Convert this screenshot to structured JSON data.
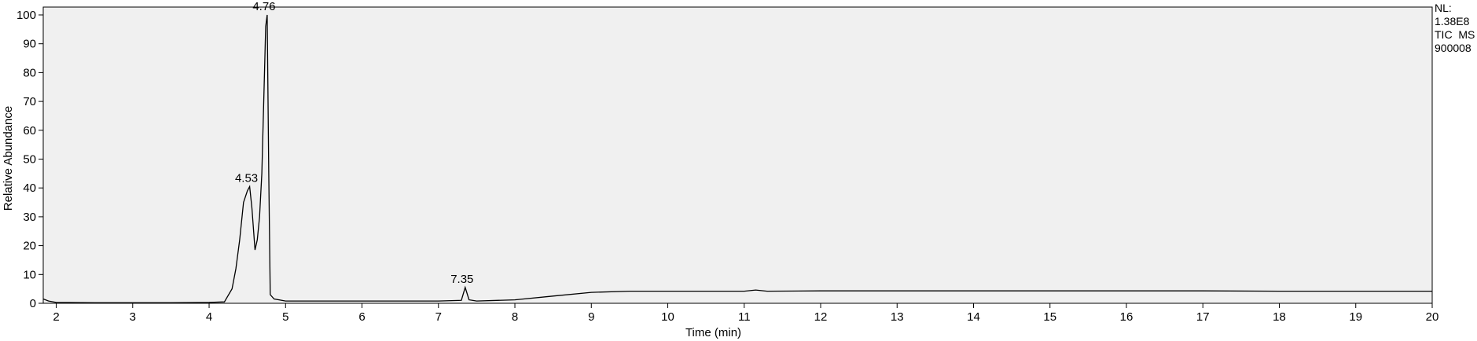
{
  "colors": {
    "plot_background": "#f0f0f0",
    "trace": "#000000",
    "axis": "#000000"
  },
  "info": {
    "normalization_label": "NL:",
    "normalization_value": "1.38E8",
    "scan_filter": "TIC  MS",
    "sample_id": "900008"
  },
  "chart_data": {
    "type": "line",
    "title": "",
    "xlabel": "Time (min)",
    "ylabel": "Relative Abundance",
    "xlim": [
      1.83,
      20
    ],
    "ylim": [
      0,
      100
    ],
    "x_ticks": [
      2,
      3,
      4,
      5,
      6,
      7,
      8,
      9,
      10,
      11,
      12,
      13,
      14,
      15,
      16,
      17,
      18,
      19,
      20
    ],
    "y_ticks": [
      0,
      10,
      20,
      30,
      40,
      50,
      60,
      70,
      80,
      90,
      100
    ],
    "grid": false,
    "legend": "none",
    "series": [
      {
        "x": [
          1.83,
          1.9,
          2.0,
          2.5,
          3.0,
          3.5,
          4.0,
          4.2,
          4.3,
          4.35,
          4.4,
          4.45,
          4.5,
          4.53,
          4.56,
          4.6,
          4.63,
          4.66,
          4.69,
          4.72,
          4.74,
          4.76,
          4.78,
          4.8,
          4.85,
          5.0,
          5.5,
          6.0,
          6.5,
          7.0,
          7.3,
          7.35,
          7.4,
          7.5,
          8.0,
          8.5,
          9.0,
          9.5,
          10.0,
          11.0,
          11.15,
          11.3,
          12.0,
          13.0,
          14.0,
          15.0,
          16.0,
          17.0,
          18.0,
          19.0,
          20.0
        ],
        "y": [
          1.5,
          0.8,
          0.3,
          0.2,
          0.2,
          0.2,
          0.3,
          0.5,
          5.0,
          12.0,
          22.0,
          35.0,
          39.0,
          40.5,
          33.0,
          18.5,
          22.0,
          30.0,
          45.0,
          75.0,
          96.0,
          100.0,
          45.0,
          3.0,
          1.5,
          0.8,
          0.8,
          0.8,
          0.8,
          0.8,
          1.0,
          5.5,
          1.2,
          0.8,
          1.2,
          2.5,
          3.8,
          4.2,
          4.2,
          4.2,
          4.6,
          4.2,
          4.3,
          4.3,
          4.3,
          4.3,
          4.3,
          4.3,
          4.2,
          4.2,
          4.2
        ]
      }
    ],
    "annotations": [
      {
        "text": "4.53",
        "x": 4.53,
        "y": 40.5
      },
      {
        "text": "4.76",
        "x": 4.76,
        "y": 100.0
      },
      {
        "text": "7.35",
        "x": 7.35,
        "y": 5.5
      }
    ]
  }
}
